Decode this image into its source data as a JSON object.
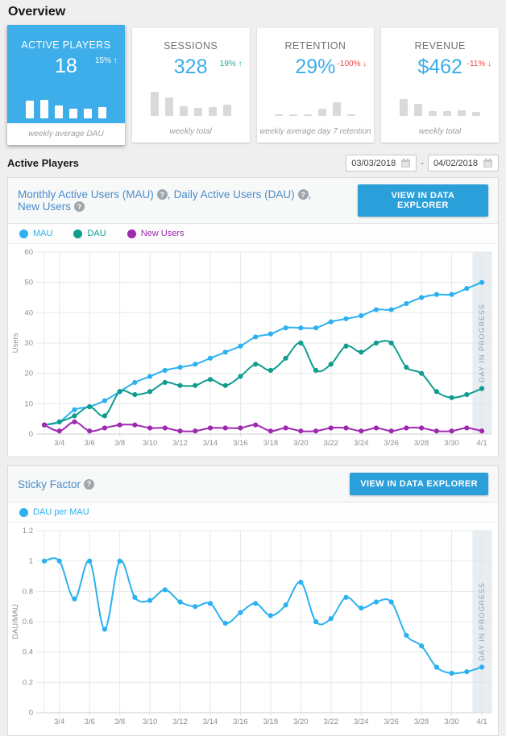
{
  "page": {
    "title": "Overview"
  },
  "colors": {
    "page_bg": "#EFEFF0",
    "card_selected_bg": "#3DAEE9",
    "value_blue": "#3BAEE9",
    "delta_up_green": "#26A69A",
    "delta_down_red": "#F0443C",
    "mini_bar_gray": "#D9D9D9",
    "button_blue": "#2B9FD9",
    "panel_title_blue": "#4A8DCA",
    "mau_blue": "#2CB1F0",
    "dau_teal": "#0F9D8F",
    "new_users_purple": "#9E28B0",
    "grid_gray": "#E6E8EA",
    "band_fill": "#DCE3EB",
    "band_text": "#97A1AB",
    "tick_text": "#8A9096"
  },
  "kpi_cards": [
    {
      "id": "active-players",
      "title": "ACTIVE PLAYERS",
      "value": "18",
      "delta": "15%",
      "delta_dir": "up",
      "caption": "weekly average DAU",
      "selected": true,
      "mini_bars": [
        22,
        23,
        16,
        12,
        12,
        14
      ]
    },
    {
      "id": "sessions",
      "title": "SESSIONS",
      "value": "328",
      "delta": "19%",
      "delta_dir": "up",
      "caption": "weekly total",
      "selected": false,
      "mini_bars": [
        30,
        23,
        12,
        10,
        11,
        14
      ]
    },
    {
      "id": "retention",
      "title": "RETENTION",
      "value": "29%",
      "delta": "-100%",
      "delta_dir": "down",
      "caption": "weekly average day 7 retention",
      "selected": false,
      "mini_bars": [
        2,
        2,
        2,
        9,
        17,
        2
      ]
    },
    {
      "id": "revenue",
      "title": "REVENUE",
      "value": "$462",
      "delta": "-11%",
      "delta_dir": "down",
      "caption": "weekly total",
      "selected": false,
      "mini_bars": [
        21,
        15,
        6,
        6,
        7,
        5
      ]
    }
  ],
  "section": {
    "title": "Active Players",
    "date_from": "03/03/2018",
    "separator": "-",
    "date_to": "04/02/2018"
  },
  "mau_panel": {
    "title_parts": [
      "Monthly Active Users (MAU)",
      "Daily Active Users (DAU)",
      "New Users"
    ],
    "button": "VIEW IN DATA EXPLORER",
    "legend": [
      {
        "label": "MAU",
        "color": "#2CB1F0"
      },
      {
        "label": "DAU",
        "color": "#0F9D8F"
      },
      {
        "label": "New Users",
        "color": "#9E28B0"
      }
    ]
  },
  "sticky_panel": {
    "title": "Sticky Factor",
    "button": "VIEW IN DATA EXPLORER",
    "legend": [
      {
        "label": "DAU per MAU",
        "color": "#2CB1F0"
      }
    ]
  },
  "chart_data": [
    {
      "type": "line",
      "title": "Monthly Active Users (MAU), Daily Active Users (DAU), New Users",
      "xlabel": "",
      "ylabel": "Users",
      "ylim": [
        0,
        60
      ],
      "ytick": 10,
      "grid": true,
      "legend_position": "top-left",
      "x": [
        "3/3",
        "3/4",
        "3/5",
        "3/6",
        "3/7",
        "3/8",
        "3/9",
        "3/10",
        "3/11",
        "3/12",
        "3/13",
        "3/14",
        "3/15",
        "3/16",
        "3/17",
        "3/18",
        "3/19",
        "3/20",
        "3/21",
        "3/22",
        "3/23",
        "3/24",
        "3/25",
        "3/26",
        "3/27",
        "3/28",
        "3/29",
        "3/30",
        "3/31",
        "4/1"
      ],
      "series": [
        {
          "name": "MAU",
          "color": "#2CB1F0",
          "values": [
            3,
            4,
            8,
            9,
            11,
            14,
            17,
            19,
            21,
            22,
            23,
            25,
            27,
            29,
            32,
            33,
            35,
            35,
            35,
            37,
            38,
            39,
            41,
            41,
            43,
            45,
            46,
            46,
            48,
            50
          ]
        },
        {
          "name": "DAU",
          "color": "#0F9D8F",
          "values": [
            3,
            4,
            6,
            9,
            6,
            14,
            13,
            14,
            17,
            16,
            16,
            18,
            16,
            19,
            23,
            21,
            25,
            30,
            21,
            23,
            29,
            27,
            30,
            30,
            22,
            20,
            14,
            12,
            13,
            15
          ]
        },
        {
          "name": "New Users",
          "color": "#9E28B0",
          "values": [
            3,
            1,
            4,
            1,
            2,
            3,
            3,
            2,
            2,
            1,
            1,
            2,
            2,
            2,
            3,
            1,
            2,
            1,
            1,
            2,
            2,
            1,
            2,
            1,
            2,
            2,
            1,
            1,
            2,
            1
          ]
        }
      ],
      "annotation": {
        "label": "DAY IN PROGRESS"
      }
    },
    {
      "type": "line",
      "title": "Sticky Factor",
      "xlabel": "",
      "ylabel": "DAU/MAU",
      "ylim": [
        0,
        1.2
      ],
      "ytick": 0.2,
      "grid": true,
      "legend_position": "top-left",
      "x": [
        "3/3",
        "3/4",
        "3/5",
        "3/6",
        "3/7",
        "3/8",
        "3/9",
        "3/10",
        "3/11",
        "3/12",
        "3/13",
        "3/14",
        "3/15",
        "3/16",
        "3/17",
        "3/18",
        "3/19",
        "3/20",
        "3/21",
        "3/22",
        "3/23",
        "3/24",
        "3/25",
        "3/26",
        "3/27",
        "3/28",
        "3/29",
        "3/30",
        "3/31",
        "4/1"
      ],
      "series": [
        {
          "name": "DAU per MAU",
          "color": "#2CB1F0",
          "values": [
            1,
            1,
            0.75,
            1,
            0.55,
            1,
            0.76,
            0.74,
            0.81,
            0.73,
            0.7,
            0.72,
            0.59,
            0.66,
            0.72,
            0.64,
            0.71,
            0.86,
            0.6,
            0.62,
            0.76,
            0.69,
            0.73,
            0.73,
            0.51,
            0.44,
            0.3,
            0.26,
            0.27,
            0.3
          ]
        }
      ],
      "annotation": {
        "label": "DAY IN PROGRESS"
      }
    }
  ]
}
